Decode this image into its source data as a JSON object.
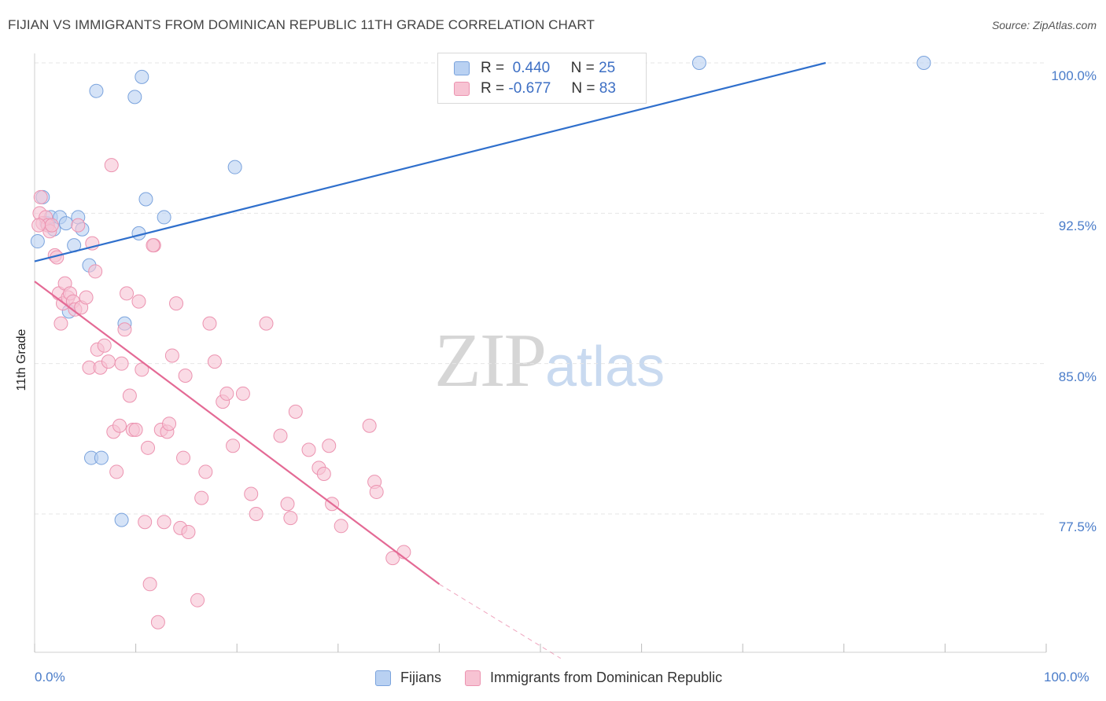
{
  "header": {
    "title": "FIJIAN VS IMMIGRANTS FROM DOMINICAN REPUBLIC 11TH GRADE CORRELATION CHART",
    "source": "Source: ZipAtlas.com"
  },
  "watermark": {
    "zip": "ZIP",
    "atlas": "atlas"
  },
  "legend": {
    "fijians": {
      "r_label": "R =",
      "r_value": "0.440",
      "n_label": "N =",
      "n_value": "25"
    },
    "dominican": {
      "r_label": "R =",
      "r_value": "-0.677",
      "n_label": "N =",
      "n_value": "83"
    }
  },
  "colors": {
    "fijians_fill": "#b9d1f2",
    "fijians_stroke": "#7aa3dd",
    "fijians_line": "#2f6fcc",
    "dominican_fill": "#f7c3d3",
    "dominican_stroke": "#ec93b0",
    "dominican_line": "#e46a95",
    "grid": "#e6e6e6",
    "tick_label": "#4a7cc9"
  },
  "chart_data": {
    "type": "scatter",
    "title": "FIJIAN VS IMMIGRANTS FROM DOMINICAN REPUBLIC 11TH GRADE CORRELATION CHART",
    "xlabel": "",
    "ylabel": "11th Grade",
    "xlim": [
      0,
      100
    ],
    "ylim": [
      70.2,
      101.5
    ],
    "x_tick_labels": [
      "0.0%",
      "100.0%"
    ],
    "y_ticks": [
      77.5,
      85.0,
      92.5,
      100.0
    ],
    "y_tick_labels": [
      "77.5%",
      "85.0%",
      "92.5%",
      "100.0%"
    ],
    "grid": true,
    "series": [
      {
        "name": "Fijians",
        "points": [
          [
            0.3,
            91.1
          ],
          [
            0.8,
            93.3
          ],
          [
            1.2,
            92.0
          ],
          [
            1.6,
            92.3
          ],
          [
            1.9,
            91.7
          ],
          [
            2.5,
            92.3
          ],
          [
            3.1,
            92.0
          ],
          [
            3.4,
            87.6
          ],
          [
            3.9,
            90.9
          ],
          [
            4.3,
            92.3
          ],
          [
            4.7,
            91.7
          ],
          [
            5.4,
            89.9
          ],
          [
            5.6,
            80.3
          ],
          [
            6.1,
            98.6
          ],
          [
            6.6,
            80.3
          ],
          [
            8.6,
            77.2
          ],
          [
            8.9,
            87.0
          ],
          [
            9.9,
            98.3
          ],
          [
            10.3,
            91.5
          ],
          [
            10.6,
            99.3
          ],
          [
            11.0,
            93.2
          ],
          [
            12.8,
            92.3
          ],
          [
            19.8,
            94.8
          ],
          [
            65.7,
            100.0
          ],
          [
            87.9,
            100.0
          ]
        ],
        "trend": {
          "x": [
            0.0,
            78.2
          ],
          "y": [
            90.1,
            100.0
          ]
        }
      },
      {
        "name": "Immigrants from Dominican Republic",
        "points": [
          [
            0.5,
            92.5
          ],
          [
            0.6,
            93.3
          ],
          [
            0.8,
            92.0
          ],
          [
            1.1,
            92.3
          ],
          [
            1.3,
            91.9
          ],
          [
            1.5,
            91.6
          ],
          [
            1.7,
            91.9
          ],
          [
            2.0,
            90.4
          ],
          [
            2.2,
            90.3
          ],
          [
            2.4,
            88.5
          ],
          [
            2.6,
            87.0
          ],
          [
            2.8,
            88.0
          ],
          [
            3.0,
            89.0
          ],
          [
            3.3,
            88.3
          ],
          [
            3.5,
            88.5
          ],
          [
            3.8,
            88.1
          ],
          [
            4.0,
            87.7
          ],
          [
            4.3,
            91.9
          ],
          [
            4.6,
            87.8
          ],
          [
            5.1,
            88.3
          ],
          [
            5.4,
            84.8
          ],
          [
            5.7,
            91.0
          ],
          [
            6.0,
            89.6
          ],
          [
            6.2,
            85.7
          ],
          [
            6.5,
            84.8
          ],
          [
            6.9,
            85.9
          ],
          [
            7.3,
            85.1
          ],
          [
            7.6,
            94.9
          ],
          [
            7.8,
            81.6
          ],
          [
            8.1,
            79.6
          ],
          [
            8.4,
            81.9
          ],
          [
            8.6,
            85.0
          ],
          [
            8.9,
            86.7
          ],
          [
            9.1,
            88.5
          ],
          [
            9.4,
            83.4
          ],
          [
            9.7,
            81.7
          ],
          [
            10.0,
            81.7
          ],
          [
            10.3,
            88.1
          ],
          [
            10.6,
            84.7
          ],
          [
            10.9,
            77.1
          ],
          [
            11.2,
            80.8
          ],
          [
            11.4,
            74.0
          ],
          [
            11.8,
            90.9
          ],
          [
            12.2,
            72.1
          ],
          [
            12.5,
            81.7
          ],
          [
            12.8,
            77.1
          ],
          [
            13.1,
            81.6
          ],
          [
            13.3,
            82.0
          ],
          [
            13.6,
            85.4
          ],
          [
            14.0,
            88.0
          ],
          [
            14.4,
            76.8
          ],
          [
            14.7,
            80.3
          ],
          [
            14.9,
            84.4
          ],
          [
            15.2,
            76.6
          ],
          [
            16.1,
            73.2
          ],
          [
            16.5,
            78.3
          ],
          [
            16.9,
            79.6
          ],
          [
            17.3,
            87.0
          ],
          [
            17.8,
            85.1
          ],
          [
            18.6,
            83.1
          ],
          [
            19.0,
            83.5
          ],
          [
            19.6,
            80.9
          ],
          [
            20.6,
            83.5
          ],
          [
            21.4,
            78.5
          ],
          [
            21.9,
            77.5
          ],
          [
            22.9,
            87.0
          ],
          [
            24.3,
            81.4
          ],
          [
            25.0,
            78.0
          ],
          [
            25.3,
            77.3
          ],
          [
            25.8,
            82.6
          ],
          [
            27.1,
            80.7
          ],
          [
            28.1,
            79.8
          ],
          [
            28.6,
            79.5
          ],
          [
            29.1,
            80.9
          ],
          [
            29.4,
            78.0
          ],
          [
            30.3,
            76.9
          ],
          [
            33.1,
            81.9
          ],
          [
            33.6,
            79.1
          ],
          [
            33.8,
            78.6
          ],
          [
            35.4,
            75.3
          ],
          [
            36.5,
            75.6
          ],
          [
            11.7,
            90.9
          ],
          [
            0.4,
            91.9
          ]
        ],
        "trend": {
          "x": [
            0.0,
            40.0
          ],
          "y": [
            89.1,
            74.0
          ]
        },
        "trend_dashed": {
          "x": [
            40.0,
            52.0
          ],
          "y": [
            74.0,
            70.3
          ]
        }
      }
    ],
    "legend_position": "top-center"
  },
  "bottom_legend": {
    "fijians": "Fijians",
    "dominican": "Immigrants from Dominican Republic"
  }
}
